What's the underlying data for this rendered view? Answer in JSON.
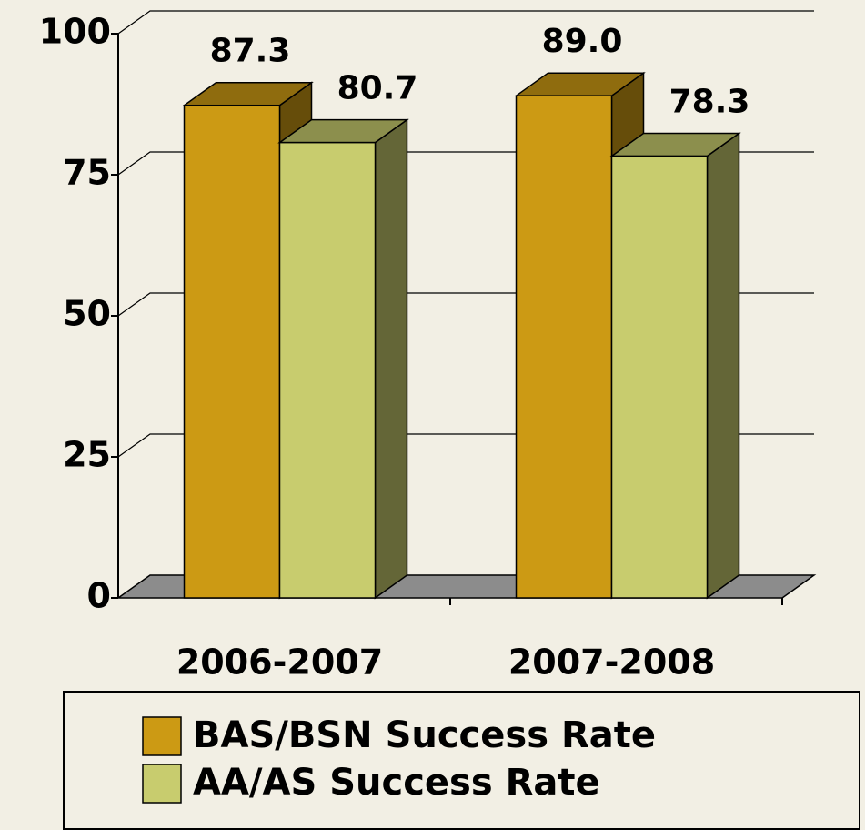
{
  "chart_data": {
    "type": "bar3d",
    "categories": [
      "2006-2007",
      "2007-2008"
    ],
    "series": [
      {
        "name": "BAS/BSN Success Rate",
        "color": "#cc9a14",
        "values": [
          87.3,
          89
        ],
        "value_labels": [
          "87.3",
          "89.0"
        ]
      },
      {
        "name": "AA/AS Success Rate",
        "color": "#c8cc6e",
        "values": [
          80.7,
          78.3
        ],
        "value_labels": [
          "80.7",
          "78.3"
        ]
      }
    ],
    "ylim": [
      0,
      100
    ],
    "yticks": [
      0,
      25,
      50,
      75,
      100
    ],
    "grid": true,
    "legend": "bottom"
  }
}
